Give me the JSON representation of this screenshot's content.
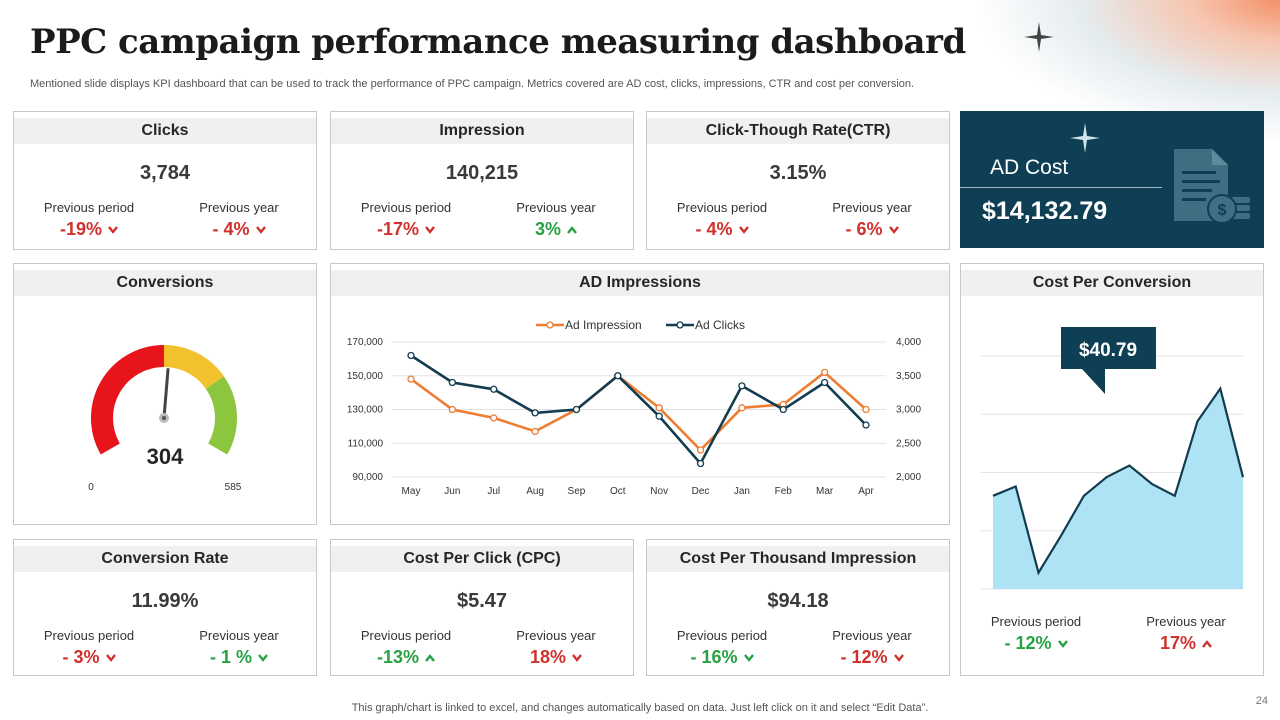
{
  "header": {
    "title": "PPC campaign performance measuring dashboard",
    "subtitle": "Mentioned slide displays KPI dashboard that can be used to track the performance of PPC campaign. Metrics covered are AD cost, clicks, impressions, CTR and cost per conversion."
  },
  "labels": {
    "previous_period": "Previous period",
    "previous_year": "Previous year"
  },
  "kpis": {
    "clicks": {
      "title": "Clicks",
      "value": "3,784",
      "prev_period": "-19%",
      "prev_year": "- 4%"
    },
    "impression": {
      "title": "Impression",
      "value": "140,215",
      "prev_period": "-17%",
      "prev_year": "3%"
    },
    "ctr": {
      "title": "Click-Though Rate(CTR)",
      "value": "3.15%",
      "prev_period": "- 4%",
      "prev_year": "- 6%"
    },
    "conversion_rate": {
      "title": "Conversion Rate",
      "value": "11.99%",
      "prev_period": "- 3%",
      "prev_year": "- 1 %"
    },
    "cpc": {
      "title": "Cost Per Click (CPC)",
      "value": "$5.47",
      "prev_period": "-13%",
      "prev_year": "18%"
    },
    "cpm": {
      "title": "Cost Per Thousand Impression",
      "value": "$94.18",
      "prev_period": "- 16%",
      "prev_year": "- 12%"
    }
  },
  "ad_cost": {
    "label": "AD Cost",
    "value": "$14,132.79"
  },
  "conversions": {
    "title": "Conversions",
    "value": "304",
    "min": "0",
    "max": "585"
  },
  "ad_impressions": {
    "title": "AD Impressions"
  },
  "cost_per_conversion": {
    "title": "Cost Per Conversion",
    "callout": "$40.79",
    "prev_period": "- 12%",
    "prev_year": "17%"
  },
  "colors": {
    "navy": "#0f3f55",
    "orange": "#ed7d31",
    "dark_line": "#123c4f",
    "negative": "#d0312d",
    "positive": "#27a243",
    "area_fill": "#aee3f5",
    "gauge_red": "#e8141b",
    "gauge_yellow": "#f2c12e",
    "gauge_green": "#8cc63f"
  },
  "footer": {
    "note": "This graph/chart is linked to excel,  and changes automatically based on data. Just left click on it and select “Edit Data”.",
    "page": "24"
  },
  "chart_data": [
    {
      "type": "line",
      "title": "AD Impressions",
      "categories": [
        "May",
        "Jun",
        "Jul",
        "Aug",
        "Sep",
        "Oct",
        "Nov",
        "Dec",
        "Jan",
        "Feb",
        "Mar",
        "Apr"
      ],
      "series": [
        {
          "name": "Ad Impression",
          "axis": "left",
          "color": "#ed7d31",
          "values": [
            148000,
            130000,
            125000,
            117000,
            130000,
            150000,
            131000,
            106000,
            131000,
            133000,
            152000,
            130000
          ]
        },
        {
          "name": "Ad Clicks",
          "axis": "right",
          "color": "#123c4f",
          "values": [
            3800,
            3400,
            3300,
            2950,
            3000,
            3500,
            2900,
            2200,
            3350,
            3000,
            3400,
            2770
          ]
        }
      ],
      "ylim_left": [
        90000,
        170000
      ],
      "ylim_right": [
        2000,
        4000
      ],
      "yticks_left": [
        "170,000",
        "150,000",
        "130,000",
        "110,000",
        "90,000"
      ],
      "yticks_right": [
        "4,000",
        "3,500",
        "3,000",
        "2,500",
        "2,000"
      ],
      "legend": "top-center",
      "grid": true
    },
    {
      "type": "area",
      "title": "Cost Per Conversion",
      "values": [
        40,
        44,
        7,
        23,
        40,
        48,
        53,
        45,
        40,
        72,
        86,
        48
      ],
      "ylim": [
        0,
        100
      ],
      "grid": true
    },
    {
      "type": "gauge",
      "title": "Conversions",
      "value": 304,
      "min": 0,
      "max": 585
    }
  ]
}
